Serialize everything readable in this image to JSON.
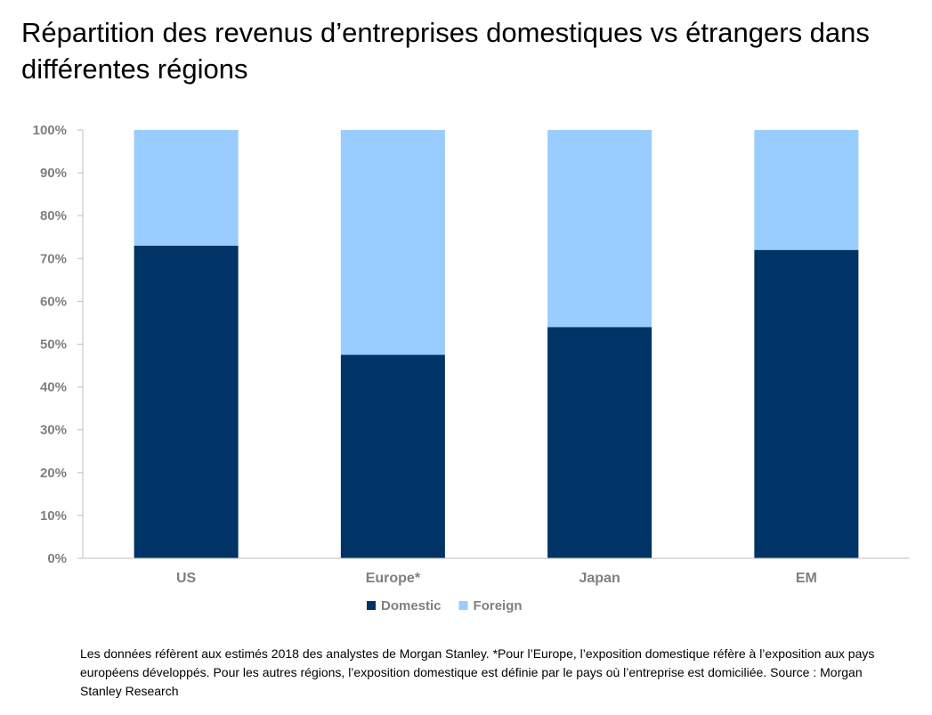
{
  "title": "Répartition des revenus d’entreprises domestiques vs étrangers dans différentes régions",
  "footnote": "Les données réfèrent aux estimés 2018 des analystes de Morgan Stanley. *Pour l’Europe, l’exposition domestique réfère à l’exposition aux pays européens développés. Pour les autres régions, l’exposition domestique est définie par le pays où l’entreprise est domiciliée. Source : Morgan Stanley Research",
  "chart_data": {
    "type": "bar",
    "stacked": true,
    "categories": [
      "US",
      "Europe*",
      "Japan",
      "EM"
    ],
    "series": [
      {
        "name": "Domestic",
        "color": "#003366",
        "values": [
          73,
          47.5,
          54,
          72
        ]
      },
      {
        "name": "Foreign",
        "color": "#99ccff",
        "values": [
          27,
          52.5,
          46,
          28
        ]
      }
    ],
    "ylim": [
      0,
      100
    ],
    "yticks": [
      0,
      10,
      20,
      30,
      40,
      50,
      60,
      70,
      80,
      90,
      100
    ],
    "ytick_labels": [
      "0%",
      "10%",
      "20%",
      "30%",
      "40%",
      "50%",
      "60%",
      "70%",
      "80%",
      "90%",
      "100%"
    ],
    "grid": false,
    "legend": "bottom-center"
  }
}
